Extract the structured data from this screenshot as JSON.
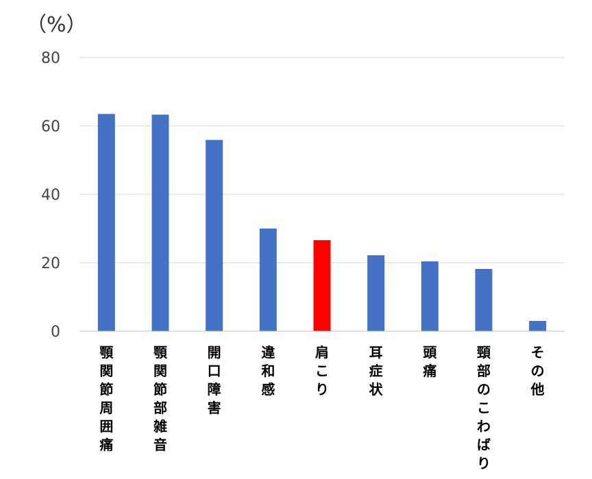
{
  "chart_data": {
    "type": "bar",
    "unit_label": "（%）",
    "categories": [
      "顎関節周囲痛",
      "顎関節部雑音",
      "開口障害",
      "違和感",
      "肩こり",
      "耳症状",
      "頭痛",
      "頸部のこわばり",
      "その他"
    ],
    "values": [
      63.5,
      63.3,
      55.9,
      30.0,
      26.6,
      22.2,
      20.4,
      18.2,
      3.0
    ],
    "ylim": [
      0,
      80
    ],
    "yticks": [
      0,
      20,
      40,
      60,
      80
    ],
    "grid": true,
    "highlight_index": 4,
    "colors": {
      "bar": "#4472c4",
      "highlight": "#ff0000"
    }
  }
}
